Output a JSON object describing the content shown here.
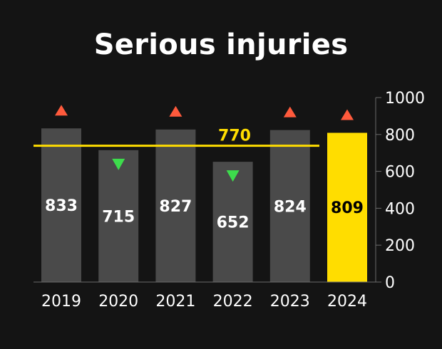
{
  "title": "Serious injuries",
  "chart_data": {
    "type": "bar",
    "title": "Serious injuries",
    "categories": [
      "2019",
      "2020",
      "2021",
      "2022",
      "2023",
      "2024"
    ],
    "values": [
      833,
      715,
      827,
      652,
      824,
      809
    ],
    "value_labels": [
      "833",
      "715",
      "827",
      "652",
      "824",
      "809"
    ],
    "trend": [
      "up",
      "down",
      "up",
      "down",
      "up",
      "up"
    ],
    "highlight_index": 5,
    "average": {
      "value": 770,
      "label": "770"
    },
    "ylim": [
      0,
      1000
    ],
    "yticks": [
      0,
      200,
      400,
      600,
      800,
      1000
    ],
    "ytick_labels": [
      "0",
      "200",
      "400",
      "600",
      "800",
      "1000"
    ],
    "y_axis_side": "right",
    "grid": false,
    "colors": {
      "background": "#141414",
      "bar": "#4a4a4a",
      "highlight_bar": "#ffdd00",
      "average_line": "#ffdd00",
      "up_marker": "#ff5a3c",
      "down_marker": "#3ddc4c",
      "text": "#ffffff",
      "highlight_text": "#000000"
    }
  }
}
